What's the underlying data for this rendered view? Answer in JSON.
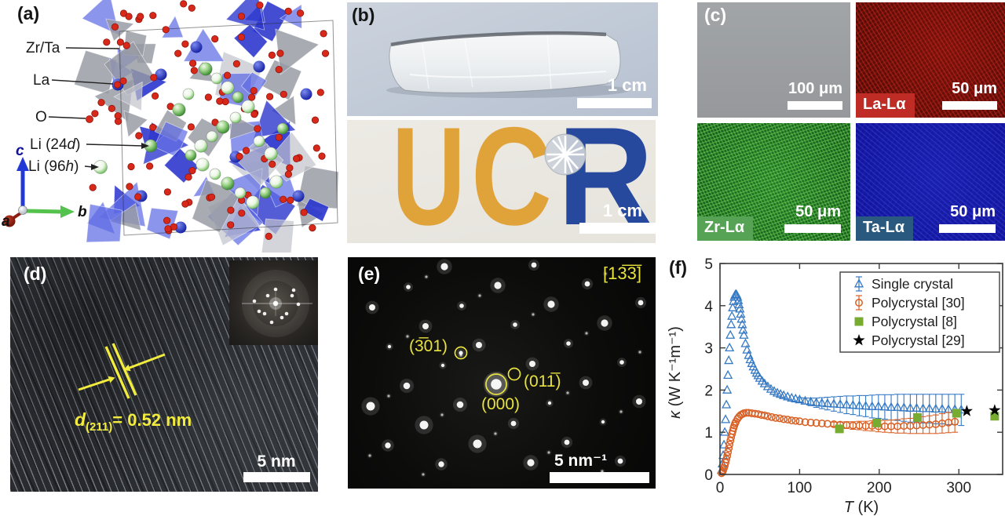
{
  "panels": {
    "a": {
      "label": "(a)",
      "sites": {
        "zrta": "Zr/Ta",
        "la": "La",
        "o": "O",
        "li24_pre": "Li (24",
        "li24_it": "d",
        "li24_post": ")",
        "li96_pre": "Li (96",
        "li96_it": "h",
        "li96_post": ")"
      },
      "axes": {
        "a": "a",
        "b": "b",
        "c": "c"
      }
    },
    "b": {
      "label": "(b)",
      "top_scale": "1 cm",
      "bottom_scale": "1 cm",
      "logo": {
        "uc_u": "U",
        "uc_c": "C",
        "r": "R"
      }
    },
    "c": {
      "label": "(c)",
      "tiles": [
        {
          "tag": "",
          "scale": "100 μm"
        },
        {
          "tag": "La-Lα",
          "scale": "50 μm"
        },
        {
          "tag": "Zr-Lα",
          "scale": "50 μm"
        },
        {
          "tag": "Ta-Lα",
          "scale": "50 μm"
        }
      ]
    },
    "d": {
      "label": "(d)",
      "ann_it": "d",
      "ann_sub": "(211)",
      "ann_rest": "= 0.52 nm",
      "scale": "5 nm"
    },
    "e": {
      "label": "(e)",
      "zone": "[13̅3̅]",
      "s301": "(3̅01)",
      "s000": "(000)",
      "s011": "(011̅)",
      "scale": "5 nm⁻¹"
    },
    "f": {
      "label": "(f)"
    }
  },
  "colors": {
    "ucr_gold": "#e0a33a",
    "ucr_blue": "#26499d",
    "annotation_yellow": "#f2ec3f",
    "la_map_red": "#bf2c26",
    "zr_map_green": "#57a355",
    "ta_map_blue": "#29597f"
  },
  "chart_data": {
    "type": "scatter",
    "title": "",
    "xlabel_it": "T",
    "xlabel_rest": " (K)",
    "ylabel_it": "κ",
    "ylabel_rest": " (W K⁻¹m⁻¹)",
    "xlim": [
      0,
      355
    ],
    "ylim": [
      0,
      5
    ],
    "xticks": [
      0,
      100,
      200,
      300
    ],
    "yticks": [
      0,
      1,
      2,
      3,
      4,
      5
    ],
    "grid": false,
    "legend_position": "top-right",
    "series": [
      {
        "name": "Single crystal",
        "marker": "triangle-open",
        "color": "#3579c4",
        "x": [
          2,
          3,
          4,
          5,
          6,
          7,
          8,
          9,
          10,
          11,
          12,
          13,
          14,
          15,
          16,
          17,
          18,
          19,
          20,
          21,
          22,
          23,
          24,
          25,
          26,
          27,
          28,
          29,
          30,
          32,
          34,
          36,
          38,
          40,
          42,
          44,
          46,
          48,
          50,
          53,
          56,
          60,
          64,
          68,
          72,
          76,
          80,
          85,
          90,
          95,
          100,
          107,
          114,
          121,
          128,
          135,
          143,
          151,
          159,
          167,
          175,
          183,
          191,
          199,
          207,
          215,
          223,
          231,
          239,
          247,
          255,
          263,
          271,
          279,
          287,
          295,
          303
        ],
        "y": [
          0.1,
          0.25,
          0.45,
          0.7,
          1.0,
          1.3,
          1.65,
          2.0,
          2.35,
          2.7,
          3.0,
          3.3,
          3.55,
          3.75,
          3.95,
          4.1,
          4.2,
          4.25,
          4.27,
          4.25,
          4.2,
          4.12,
          4.02,
          3.92,
          3.8,
          3.68,
          3.55,
          3.42,
          3.3,
          3.1,
          2.95,
          2.82,
          2.72,
          2.63,
          2.55,
          2.47,
          2.4,
          2.34,
          2.28,
          2.21,
          2.15,
          2.08,
          2.02,
          1.97,
          1.93,
          1.9,
          1.87,
          1.84,
          1.81,
          1.79,
          1.77,
          1.74,
          1.72,
          1.7,
          1.69,
          1.68,
          1.67,
          1.66,
          1.65,
          1.64,
          1.63,
          1.62,
          1.61,
          1.61,
          1.6,
          1.59,
          1.59,
          1.58,
          1.57,
          1.57,
          1.56,
          1.56,
          1.55,
          1.55,
          1.54,
          1.54,
          1.53
        ],
        "yerr": [
          0,
          0,
          0,
          0,
          0,
          0,
          0,
          0,
          0,
          0,
          0,
          0,
          0,
          0,
          0,
          0,
          0,
          0,
          0,
          0,
          0,
          0,
          0,
          0,
          0,
          0,
          0,
          0,
          0,
          0,
          0,
          0,
          0,
          0,
          0,
          0,
          0,
          0,
          0,
          0,
          0,
          0,
          0,
          0,
          0,
          0,
          0,
          0,
          0,
          0,
          0.05,
          0.07,
          0.09,
          0.11,
          0.13,
          0.15,
          0.17,
          0.19,
          0.21,
          0.22,
          0.24,
          0.25,
          0.27,
          0.28,
          0.29,
          0.3,
          0.31,
          0.32,
          0.33,
          0.33,
          0.34,
          0.34,
          0.35,
          0.35,
          0.36,
          0.36,
          0.37
        ]
      },
      {
        "name": "Polycrystal [30]",
        "marker": "circle-open",
        "color": "#d95f23",
        "x": [
          2,
          3,
          4,
          5,
          6,
          7,
          8,
          9,
          10,
          11,
          12,
          13,
          14,
          15,
          16,
          17,
          18,
          19,
          20,
          22,
          24,
          26,
          28,
          30,
          33,
          36,
          40,
          44,
          48,
          52,
          56,
          60,
          65,
          70,
          75,
          80,
          85,
          90,
          95,
          100,
          107,
          114,
          121,
          128,
          135,
          143,
          151,
          159,
          167,
          175,
          183,
          191,
          199,
          207,
          215,
          223,
          231,
          239,
          247,
          255,
          263,
          271,
          279,
          287,
          295
        ],
        "y": [
          0.03,
          0.06,
          0.1,
          0.15,
          0.21,
          0.28,
          0.36,
          0.44,
          0.53,
          0.62,
          0.71,
          0.8,
          0.88,
          0.96,
          1.03,
          1.1,
          1.16,
          1.21,
          1.25,
          1.32,
          1.37,
          1.41,
          1.43,
          1.45,
          1.46,
          1.46,
          1.45,
          1.44,
          1.43,
          1.41,
          1.4,
          1.38,
          1.36,
          1.34,
          1.33,
          1.31,
          1.3,
          1.28,
          1.27,
          1.26,
          1.24,
          1.23,
          1.22,
          1.21,
          1.2,
          1.19,
          1.18,
          1.17,
          1.16,
          1.16,
          1.15,
          1.15,
          1.14,
          1.14,
          1.14,
          1.14,
          1.15,
          1.15,
          1.16,
          1.17,
          1.18,
          1.19,
          1.21,
          1.23,
          1.25
        ],
        "yerr": [
          0,
          0,
          0,
          0,
          0,
          0,
          0,
          0,
          0,
          0,
          0,
          0,
          0,
          0,
          0,
          0,
          0,
          0,
          0,
          0,
          0,
          0,
          0,
          0,
          0,
          0,
          0,
          0,
          0,
          0,
          0,
          0,
          0,
          0,
          0,
          0,
          0,
          0,
          0,
          0,
          0,
          0,
          0,
          0,
          0,
          0.05,
          0.06,
          0.08,
          0.09,
          0.1,
          0.11,
          0.12,
          0.13,
          0.14,
          0.15,
          0.16,
          0.17,
          0.18,
          0.19,
          0.2,
          0.21,
          0.22,
          0.23,
          0.24,
          0.25
        ]
      },
      {
        "name": "Polycrystal [8]",
        "marker": "square-filled",
        "color": "#77ac30",
        "x": [
          150,
          197,
          248,
          297,
          345
        ],
        "y": [
          1.08,
          1.22,
          1.35,
          1.45,
          1.38
        ]
      },
      {
        "name": "Polycrystal [29]",
        "marker": "star-filled",
        "color": "#000000",
        "x": [
          310,
          345
        ],
        "y": [
          1.5,
          1.52
        ]
      }
    ]
  }
}
